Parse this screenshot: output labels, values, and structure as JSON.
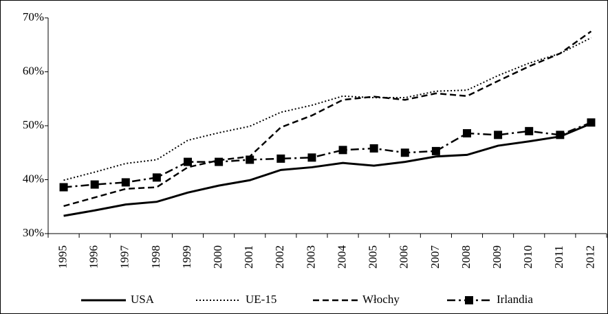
{
  "chart_data": {
    "type": "line",
    "categories": [
      "1995",
      "1996",
      "1997",
      "1998",
      "1999",
      "2000",
      "2001",
      "2002",
      "2003",
      "2004",
      "2005",
      "2006",
      "2007",
      "2008",
      "2009",
      "2010",
      "2011",
      "2012"
    ],
    "series": [
      {
        "name": "USA",
        "color": "#000000",
        "style": "solid",
        "values": [
          33.3,
          34.3,
          35.4,
          35.9,
          37.6,
          38.9,
          39.9,
          41.8,
          42.3,
          43.1,
          42.6,
          43.3,
          44.3,
          44.6,
          46.3,
          47.1,
          48.0,
          50.4
        ]
      },
      {
        "name": "UE-15",
        "color": "#000000",
        "style": "dotted",
        "values": [
          39.9,
          41.4,
          43.0,
          43.7,
          47.3,
          48.7,
          49.9,
          52.5,
          53.8,
          55.5,
          55.2,
          55.2,
          56.4,
          56.6,
          59.3,
          61.6,
          63.4,
          66.3
        ]
      },
      {
        "name": "Włochy",
        "color": "#000000",
        "style": "dashed",
        "values": [
          35.1,
          36.7,
          38.3,
          38.6,
          42.3,
          43.6,
          44.3,
          49.7,
          51.9,
          54.8,
          55.4,
          54.8,
          56.0,
          55.5,
          58.3,
          61.0,
          63.4,
          67.5
        ]
      },
      {
        "name": "Irlandia",
        "color": "#000000",
        "style": "dashdot",
        "marker": "square",
        "values": [
          38.6,
          39.1,
          39.5,
          40.4,
          43.3,
          43.3,
          43.7,
          43.9,
          44.1,
          45.5,
          45.8,
          45.0,
          45.3,
          48.6,
          48.3,
          49.0,
          48.3,
          50.6
        ]
      }
    ],
    "ylim": [
      30,
      70
    ],
    "yticks": [
      {
        "value": 30,
        "label": "30%"
      },
      {
        "value": 40,
        "label": "40%"
      },
      {
        "value": 50,
        "label": "50%"
      },
      {
        "value": 60,
        "label": "60%"
      },
      {
        "value": 70,
        "label": "70%"
      }
    ],
    "grid": false,
    "legend": "bottom"
  }
}
